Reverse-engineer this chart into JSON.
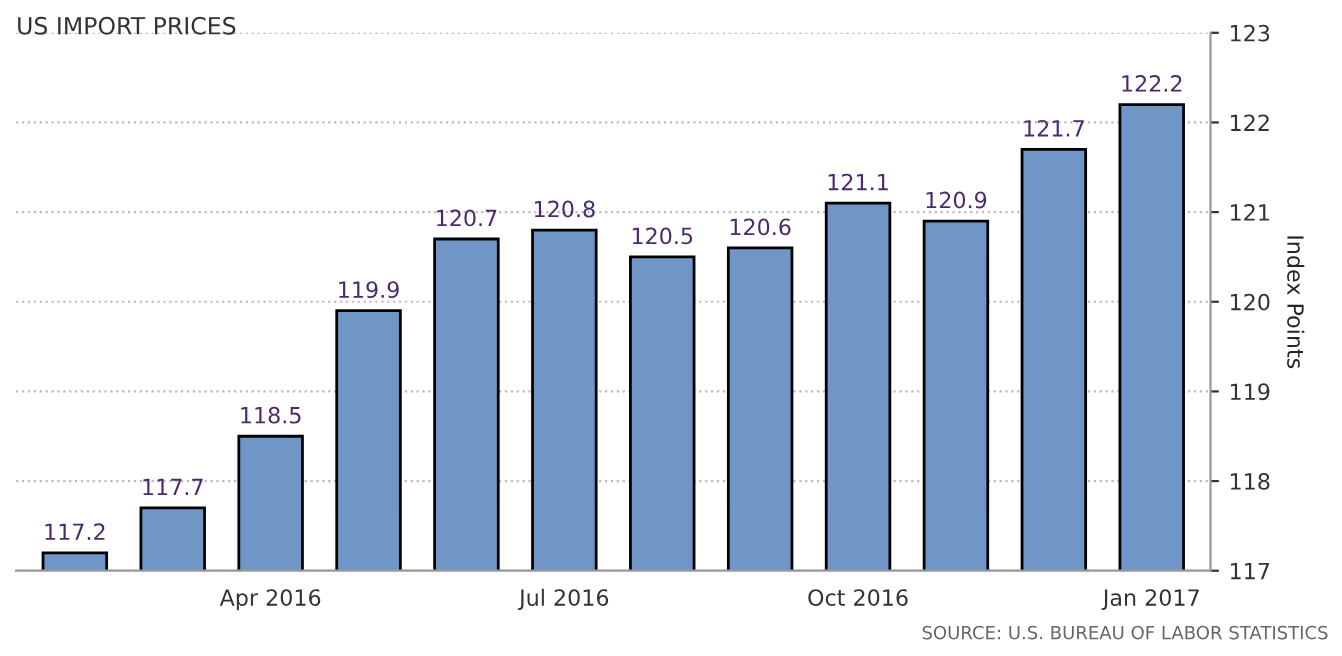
{
  "chart_data": {
    "type": "bar",
    "title": "US IMPORT PRICES",
    "ylabel": "Index Points",
    "categories": [
      null,
      null,
      "Apr 2016",
      null,
      null,
      "Jul 2016",
      null,
      null,
      "Oct 2016",
      null,
      null,
      "Jan 2017"
    ],
    "values": [
      117.2,
      117.7,
      118.5,
      119.9,
      120.7,
      120.8,
      120.5,
      120.6,
      121.1,
      120.9,
      121.7,
      122.2
    ],
    "color": "#6f96c6",
    "ylim": [
      117,
      123
    ],
    "yticks": [
      117,
      118,
      119,
      120,
      121,
      122,
      123
    ],
    "grid": "y",
    "data_labels": true,
    "annotations": [
      "SOURCE: U.S. BUREAU OF LABOR STATISTICS"
    ]
  }
}
